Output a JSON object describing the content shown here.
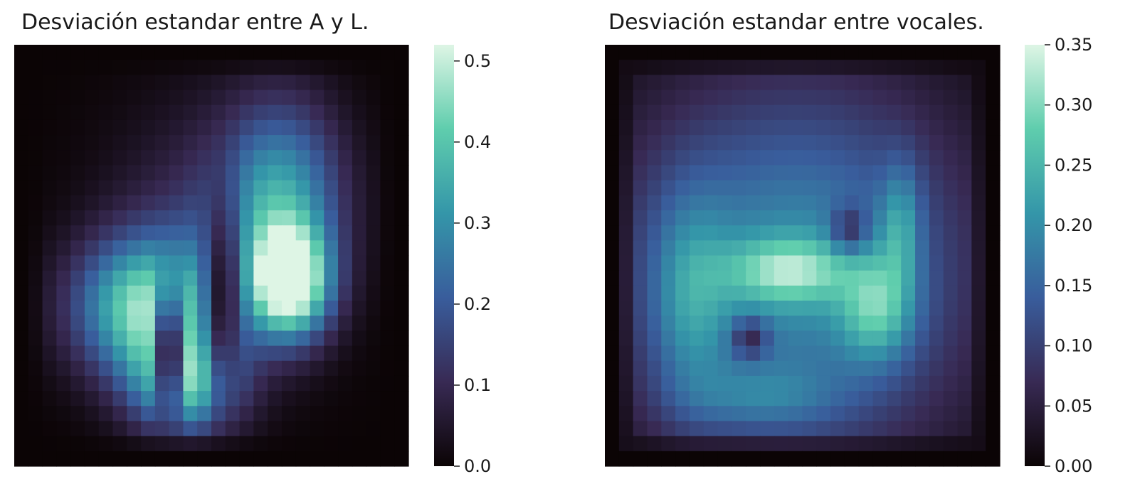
{
  "chart_data": [
    {
      "type": "heatmap",
      "title": "Desviación estandar entre A y L.",
      "colormap": "mako",
      "grid_size": [
        28,
        28
      ],
      "colorbar": {
        "vmin": 0.0,
        "vmax": 0.52,
        "ticks": [
          0.0,
          0.1,
          0.2,
          0.3,
          0.4,
          0.5
        ],
        "tick_labels": [
          "0.0",
          "0.1",
          "0.2",
          "0.3",
          "0.4",
          "0.5"
        ]
      },
      "colorbar_colors": [
        "#0b0405",
        "#382a54",
        "#395d9c",
        "#3496a9",
        "#5fcdad",
        "#def5e5"
      ],
      "blobs": [
        {
          "cx": 9.5,
          "cy": 17.5,
          "sx": 3.6,
          "sy": 3.2,
          "a": 0.42
        },
        {
          "cx": 12.2,
          "cy": 22.5,
          "sx": 2.6,
          "sy": 2.4,
          "a": 0.38
        },
        {
          "cx": 19.6,
          "cy": 15.8,
          "sx": 2.0,
          "sy": 2.6,
          "a": 0.52
        },
        {
          "cx": 19.0,
          "cy": 10.0,
          "sx": 3.0,
          "sy": 4.4,
          "a": 0.28
        },
        {
          "cx": 14.0,
          "cy": 13.0,
          "sx": 5.0,
          "sy": 6.0,
          "a": 0.12
        }
      ],
      "holes": [
        {
          "cx": 11.0,
          "cy": 20.5,
          "sx": 0.7,
          "sy": 3.2,
          "a": 0.4
        },
        {
          "cx": 14.8,
          "cy": 16.5,
          "sx": 0.9,
          "sy": 5.0,
          "a": 0.35
        }
      ],
      "value_range": [
        0,
        0.52
      ]
    },
    {
      "type": "heatmap",
      "title": "Desviación estandar entre vocales.",
      "colormap": "mako",
      "grid_size": [
        28,
        28
      ],
      "colorbar": {
        "vmin": 0.0,
        "vmax": 0.35,
        "ticks": [
          0.0,
          0.05,
          0.1,
          0.15,
          0.2,
          0.25,
          0.3,
          0.35
        ],
        "tick_labels": [
          "0.00",
          "0.05",
          "0.10",
          "0.15",
          "0.20",
          "0.25",
          "0.30",
          "0.35"
        ]
      },
      "colorbar_colors": [
        "#0b0405",
        "#382a54",
        "#395d9c",
        "#3496a9",
        "#5fcdad",
        "#def5e5"
      ],
      "blobs": [
        {
          "cx": 13.5,
          "cy": 15.0,
          "sx": 9.0,
          "sy": 9.0,
          "a": 0.2
        },
        {
          "cx": 13.0,
          "cy": 15.0,
          "sx": 3.0,
          "sy": 1.5,
          "a": 0.14
        },
        {
          "cx": 19.3,
          "cy": 17.5,
          "sx": 1.8,
          "sy": 2.5,
          "a": 0.14
        },
        {
          "cx": 21.0,
          "cy": 12.0,
          "sx": 1.0,
          "sy": 3.0,
          "a": 0.1
        },
        {
          "cx": 6.0,
          "cy": 17.0,
          "sx": 2.0,
          "sy": 5.0,
          "a": 0.1
        },
        {
          "cx": 11.0,
          "cy": 23.5,
          "sx": 4.0,
          "sy": 1.5,
          "a": 0.07
        }
      ],
      "holes": [
        {
          "cx": 10.3,
          "cy": 19.5,
          "sx": 0.9,
          "sy": 0.9,
          "a": 0.25
        },
        {
          "cx": 17.3,
          "cy": 12.2,
          "sx": 0.9,
          "sy": 1.1,
          "a": 0.22
        }
      ],
      "value_range": [
        0,
        0.35
      ]
    }
  ]
}
